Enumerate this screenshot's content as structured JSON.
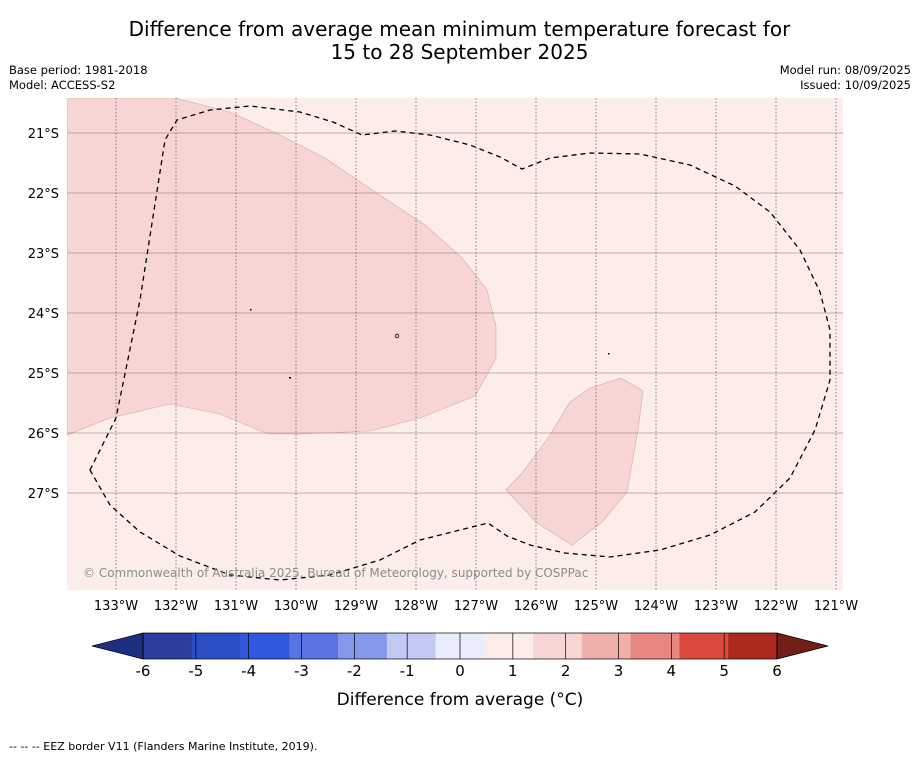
{
  "title": {
    "line1": "Difference from average mean minimum temperature forecast for",
    "line2": "15 to 28 September 2025"
  },
  "meta": {
    "base_period": "Base period: 1981-2018",
    "model": "Model: ACCESS-S2",
    "model_run": "Model run: 08/09/2025",
    "issued": "Issued: 10/09/2025"
  },
  "map": {
    "longitude_labels": [
      "133°W",
      "132°W",
      "131°W",
      "130°W",
      "129°W",
      "128°W",
      "127°W",
      "126°W",
      "125°W",
      "124°W",
      "123°W",
      "122°W",
      "121°W"
    ],
    "latitude_labels": [
      "21°S",
      "22°S",
      "23°S",
      "24°S",
      "25°S",
      "26°S",
      "27°S"
    ],
    "copyright": "© Commonwealth of Australia 2025, Bureau of Meteorology, supported by COSPPac",
    "background_category": "0 to 1",
    "anomaly_areas_category": "1 to 2"
  },
  "colorbar": {
    "tick_labels": [
      "-6",
      "-5",
      "-4",
      "-3",
      "-2",
      "-1",
      "0",
      "1",
      "2",
      "3",
      "4",
      "5",
      "6"
    ],
    "colors": [
      "#2a3e9e",
      "#2c4fc8",
      "#3057e0",
      "#5a73e3",
      "#8597ea",
      "#c1c9f4",
      "#e9ecfb",
      "#fcecea",
      "#f6d5d4",
      "#efafaa",
      "#e88781",
      "#dc4a3f",
      "#ab2a20"
    ],
    "lower_extend_color": "#1d2f80",
    "upper_extend_color": "#731f17",
    "label": "Difference from average (°C)"
  },
  "footnote": "-- -- -- EEZ border V11 (Flanders Marine Institute, 2019)."
}
